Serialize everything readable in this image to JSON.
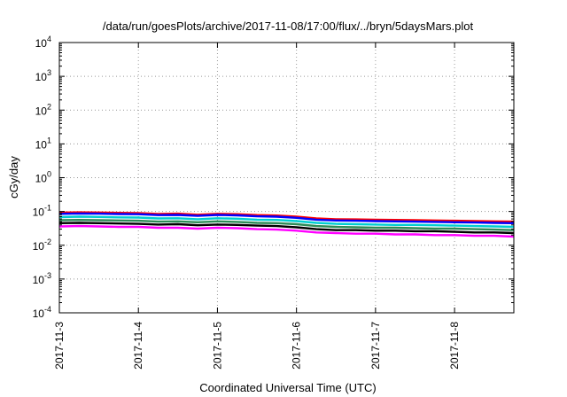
{
  "chart_data": {
    "type": "line",
    "title": "/data/run/goesPlots/archive/2017-11-08/17:00/flux/../bryn/5daysMars.plot",
    "xlabel": "Coordinated Universal Time (UTC)",
    "ylabel": "cGy/day",
    "yscale": "log",
    "ylim": [
      0.0001,
      10000
    ],
    "xlim": [
      "2017-11-03T00:00",
      "2017-11-08T18:00"
    ],
    "grid": true,
    "x_tick_labels": [
      "2017-11-3",
      "2017-11-4",
      "2017-11-5",
      "2017-11-6",
      "2017-11-7",
      "2017-11-8"
    ],
    "y_tick_labels": [
      {
        "base": "10",
        "exp": "-4"
      },
      {
        "base": "10",
        "exp": "-3"
      },
      {
        "base": "10",
        "exp": "-2"
      },
      {
        "base": "10",
        "exp": "-1"
      },
      {
        "base": "10",
        "exp": "0"
      },
      {
        "base": "10",
        "exp": "1"
      },
      {
        "base": "10",
        "exp": "2"
      },
      {
        "base": "10",
        "exp": "3"
      },
      {
        "base": "10",
        "exp": "4"
      }
    ],
    "series": [
      {
        "color": "#ff0000",
        "values": [
          0.092,
          0.094,
          0.093,
          0.091,
          0.09,
          0.084,
          0.086,
          0.08,
          0.085,
          0.083,
          0.078,
          0.076,
          0.07,
          0.062,
          0.059,
          0.058,
          0.057,
          0.056,
          0.055,
          0.054,
          0.053,
          0.052,
          0.051,
          0.05
        ]
      },
      {
        "color": "#0000ff",
        "values": [
          0.085,
          0.087,
          0.086,
          0.084,
          0.083,
          0.078,
          0.079,
          0.074,
          0.079,
          0.077,
          0.072,
          0.07,
          0.065,
          0.057,
          0.054,
          0.053,
          0.052,
          0.051,
          0.05,
          0.049,
          0.048,
          0.047,
          0.046,
          0.045
        ]
      },
      {
        "color": "#00ced1",
        "values": [
          0.068,
          0.07,
          0.069,
          0.067,
          0.066,
          0.062,
          0.063,
          0.059,
          0.063,
          0.061,
          0.057,
          0.056,
          0.052,
          0.046,
          0.043,
          0.042,
          0.041,
          0.04,
          0.04,
          0.039,
          0.038,
          0.037,
          0.036,
          0.035
        ]
      },
      {
        "color": "#2e8b57",
        "values": [
          0.055,
          0.056,
          0.055,
          0.054,
          0.053,
          0.05,
          0.051,
          0.048,
          0.051,
          0.049,
          0.046,
          0.045,
          0.042,
          0.037,
          0.035,
          0.034,
          0.033,
          0.033,
          0.032,
          0.031,
          0.031,
          0.03,
          0.029,
          0.028
        ]
      },
      {
        "color": "#000000",
        "values": [
          0.045,
          0.046,
          0.045,
          0.044,
          0.043,
          0.041,
          0.042,
          0.039,
          0.041,
          0.04,
          0.038,
          0.037,
          0.034,
          0.03,
          0.028,
          0.028,
          0.027,
          0.027,
          0.026,
          0.026,
          0.025,
          0.024,
          0.024,
          0.023
        ]
      },
      {
        "color": "#ff00ff",
        "values": [
          0.036,
          0.037,
          0.036,
          0.035,
          0.035,
          0.033,
          0.033,
          0.031,
          0.033,
          0.032,
          0.03,
          0.029,
          0.027,
          0.024,
          0.023,
          0.022,
          0.022,
          0.021,
          0.021,
          0.02,
          0.02,
          0.019,
          0.019,
          0.018
        ]
      }
    ],
    "x": [
      "2017-11-03T00:00",
      "2017-11-03T06:00",
      "2017-11-03T12:00",
      "2017-11-03T18:00",
      "2017-11-04T00:00",
      "2017-11-04T06:00",
      "2017-11-04T12:00",
      "2017-11-04T18:00",
      "2017-11-05T00:00",
      "2017-11-05T06:00",
      "2017-11-05T12:00",
      "2017-11-05T18:00",
      "2017-11-06T00:00",
      "2017-11-06T06:00",
      "2017-11-06T12:00",
      "2017-11-06T18:00",
      "2017-11-07T00:00",
      "2017-11-07T06:00",
      "2017-11-07T12:00",
      "2017-11-07T18:00",
      "2017-11-08T00:00",
      "2017-11-08T06:00",
      "2017-11-08T12:00",
      "2017-11-08T18:00"
    ]
  }
}
